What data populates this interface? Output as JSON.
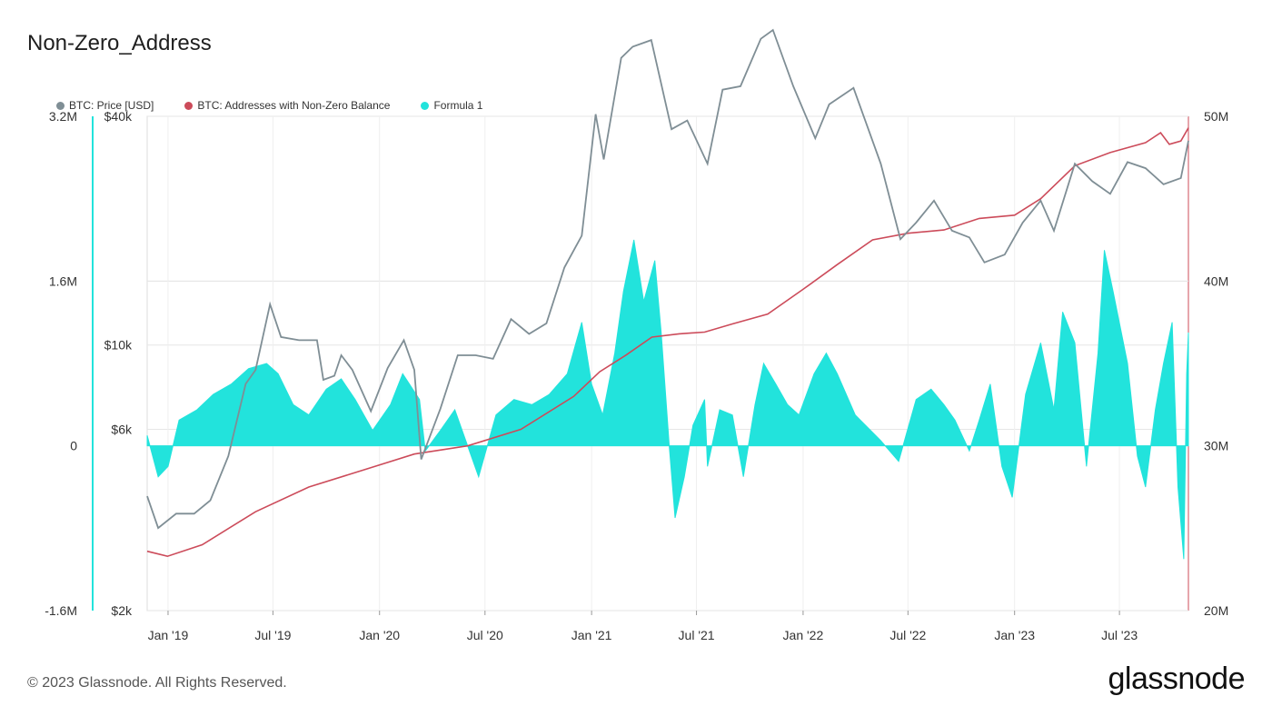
{
  "title": "Non-Zero_Address",
  "footer": "© 2023 Glassnode. All Rights Reserved.",
  "logo": "glassnode",
  "legend": [
    {
      "label": "BTC: Price [USD]",
      "color": "#7f8e95"
    },
    {
      "label": "BTC: Addresses with Non-Zero Balance",
      "color": "#cc4b5a"
    },
    {
      "label": "Formula 1",
      "color": "#22e3dc"
    }
  ],
  "chart_data": {
    "type": "line",
    "x_range": [
      "2018-11-26",
      "2023-10-28"
    ],
    "x_ticks": [
      {
        "label": "Jan '19",
        "date": "2019-01-01"
      },
      {
        "label": "Jul '19",
        "date": "2019-07-01"
      },
      {
        "label": "Jan '20",
        "date": "2020-01-01"
      },
      {
        "label": "Jul '20",
        "date": "2020-07-01"
      },
      {
        "label": "Jan '21",
        "date": "2021-01-01"
      },
      {
        "label": "Jul '21",
        "date": "2021-07-01"
      },
      {
        "label": "Jan '22",
        "date": "2022-01-01"
      },
      {
        "label": "Jul '22",
        "date": "2022-07-01"
      },
      {
        "label": "Jan '23",
        "date": "2023-01-01"
      },
      {
        "label": "Jul '23",
        "date": "2023-07-01"
      }
    ],
    "axes": {
      "formula": {
        "ticks": [
          {
            "label": "3.2M",
            "value": 3200000
          },
          {
            "label": "1.6M",
            "value": 1600000
          },
          {
            "label": "0",
            "value": 0
          },
          {
            "label": "-1.6M",
            "value": -1600000
          }
        ],
        "range": [
          -1600000,
          3200000
        ]
      },
      "price": {
        "scale": "log",
        "ticks": [
          {
            "label": "$40k",
            "value": 40000
          },
          {
            "label": "$10k",
            "value": 10000
          },
          {
            "label": "$6k",
            "value": 6000
          },
          {
            "label": "$2k",
            "value": 2000
          }
        ],
        "range": [
          2000,
          40000
        ]
      },
      "addresses": {
        "ticks": [
          {
            "label": "50M",
            "value": 50000000
          },
          {
            "label": "40M",
            "value": 40000000
          },
          {
            "label": "30M",
            "value": 30000000
          },
          {
            "label": "20M",
            "value": 20000000
          }
        ],
        "range": [
          20000000,
          50000000
        ]
      }
    },
    "series": [
      {
        "name": "BTC: Price [USD]",
        "axis": "price",
        "points": [
          [
            "2018-11-26",
            4000
          ],
          [
            "2018-12-15",
            3300
          ],
          [
            "2019-01-15",
            3600
          ],
          [
            "2019-02-15",
            3600
          ],
          [
            "2019-03-15",
            3900
          ],
          [
            "2019-04-15",
            5100
          ],
          [
            "2019-05-15",
            7900
          ],
          [
            "2019-06-01",
            8600
          ],
          [
            "2019-06-26",
            12800
          ],
          [
            "2019-07-15",
            10500
          ],
          [
            "2019-08-15",
            10300
          ],
          [
            "2019-09-15",
            10300
          ],
          [
            "2019-09-26",
            8100
          ],
          [
            "2019-10-15",
            8300
          ],
          [
            "2019-10-27",
            9400
          ],
          [
            "2019-11-15",
            8600
          ],
          [
            "2019-12-17",
            6700
          ],
          [
            "2020-01-15",
            8700
          ],
          [
            "2020-02-12",
            10300
          ],
          [
            "2020-03-01",
            8600
          ],
          [
            "2020-03-13",
            5000
          ],
          [
            "2020-04-15",
            6800
          ],
          [
            "2020-05-15",
            9400
          ],
          [
            "2020-06-15",
            9400
          ],
          [
            "2020-07-15",
            9200
          ],
          [
            "2020-08-15",
            11700
          ],
          [
            "2020-09-15",
            10700
          ],
          [
            "2020-10-15",
            11400
          ],
          [
            "2020-11-15",
            16000
          ],
          [
            "2020-12-15",
            19400
          ],
          [
            "2021-01-08",
            40500
          ],
          [
            "2021-01-22",
            30800
          ],
          [
            "2021-02-21",
            57000
          ],
          [
            "2021-03-13",
            61000
          ],
          [
            "2021-04-14",
            63500
          ],
          [
            "2021-05-19",
            37000
          ],
          [
            "2021-06-15",
            39000
          ],
          [
            "2021-07-20",
            30000
          ],
          [
            "2021-08-15",
            47000
          ],
          [
            "2021-09-15",
            48000
          ],
          [
            "2021-10-20",
            64000
          ],
          [
            "2021-11-10",
            67500
          ],
          [
            "2021-12-15",
            48000
          ],
          [
            "2022-01-22",
            35000
          ],
          [
            "2022-02-15",
            43000
          ],
          [
            "2022-03-29",
            47500
          ],
          [
            "2022-05-15",
            30000
          ],
          [
            "2022-06-18",
            19000
          ],
          [
            "2022-07-15",
            21000
          ],
          [
            "2022-08-15",
            24000
          ],
          [
            "2022-09-15",
            20000
          ],
          [
            "2022-10-15",
            19200
          ],
          [
            "2022-11-10",
            16500
          ],
          [
            "2022-12-15",
            17300
          ],
          [
            "2023-01-15",
            21000
          ],
          [
            "2023-02-15",
            24000
          ],
          [
            "2023-03-10",
            20000
          ],
          [
            "2023-04-15",
            30000
          ],
          [
            "2023-05-15",
            27000
          ],
          [
            "2023-06-15",
            25000
          ],
          [
            "2023-07-15",
            30300
          ],
          [
            "2023-08-15",
            29200
          ],
          [
            "2023-09-15",
            26500
          ],
          [
            "2023-10-15",
            27500
          ],
          [
            "2023-10-28",
            34500
          ]
        ]
      },
      {
        "name": "BTC: Addresses with Non-Zero Balance",
        "axis": "addresses",
        "points": [
          [
            "2018-11-26",
            23.6
          ],
          [
            "2018-12-31",
            23.3
          ],
          [
            "2019-03-01",
            24.0
          ],
          [
            "2019-06-01",
            26.0
          ],
          [
            "2019-09-01",
            27.5
          ],
          [
            "2019-12-01",
            28.5
          ],
          [
            "2020-03-01",
            29.5
          ],
          [
            "2020-06-01",
            30.0
          ],
          [
            "2020-09-01",
            31.0
          ],
          [
            "2020-12-01",
            33.0
          ],
          [
            "2021-01-15",
            34.5
          ],
          [
            "2021-03-01",
            35.5
          ],
          [
            "2021-04-15",
            36.6
          ],
          [
            "2021-06-01",
            36.8
          ],
          [
            "2021-07-15",
            36.9
          ],
          [
            "2021-09-01",
            37.4
          ],
          [
            "2021-11-01",
            38.0
          ],
          [
            "2022-01-01",
            39.5
          ],
          [
            "2022-03-01",
            41.0
          ],
          [
            "2022-05-01",
            42.5
          ],
          [
            "2022-07-01",
            42.9
          ],
          [
            "2022-09-01",
            43.1
          ],
          [
            "2022-11-01",
            43.8
          ],
          [
            "2023-01-01",
            44.0
          ],
          [
            "2023-02-15",
            45.0
          ],
          [
            "2023-04-15",
            47.0
          ],
          [
            "2023-06-15",
            47.8
          ],
          [
            "2023-08-15",
            48.4
          ],
          [
            "2023-09-10",
            49.0
          ],
          [
            "2023-09-25",
            48.3
          ],
          [
            "2023-10-15",
            48.5
          ],
          [
            "2023-10-28",
            49.3
          ]
        ]
      },
      {
        "name": "Formula 1",
        "axis": "formula",
        "style": "area",
        "points": [
          [
            "2018-11-26",
            100000
          ],
          [
            "2018-12-15",
            -300000
          ],
          [
            "2019-01-01",
            -200000
          ],
          [
            "2019-01-20",
            250000
          ],
          [
            "2019-02-20",
            350000
          ],
          [
            "2019-03-20",
            500000
          ],
          [
            "2019-04-20",
            600000
          ],
          [
            "2019-05-20",
            750000
          ],
          [
            "2019-06-20",
            800000
          ],
          [
            "2019-07-10",
            700000
          ],
          [
            "2019-08-05",
            400000
          ],
          [
            "2019-09-01",
            300000
          ],
          [
            "2019-10-01",
            550000
          ],
          [
            "2019-10-27",
            650000
          ],
          [
            "2019-11-20",
            450000
          ],
          [
            "2019-12-20",
            150000
          ],
          [
            "2020-01-20",
            400000
          ],
          [
            "2020-02-10",
            700000
          ],
          [
            "2020-03-10",
            450000
          ],
          [
            "2020-03-20",
            -50000
          ],
          [
            "2020-04-15",
            150000
          ],
          [
            "2020-05-10",
            350000
          ],
          [
            "2020-06-01",
            0
          ],
          [
            "2020-06-20",
            -300000
          ],
          [
            "2020-07-20",
            300000
          ],
          [
            "2020-08-20",
            450000
          ],
          [
            "2020-09-20",
            400000
          ],
          [
            "2020-10-20",
            500000
          ],
          [
            "2020-11-20",
            700000
          ],
          [
            "2020-12-15",
            1200000
          ],
          [
            "2021-01-01",
            600000
          ],
          [
            "2021-01-20",
            300000
          ],
          [
            "2021-02-10",
            900000
          ],
          [
            "2021-02-25",
            1500000
          ],
          [
            "2021-03-15",
            2000000
          ],
          [
            "2021-04-01",
            1400000
          ],
          [
            "2021-04-20",
            1800000
          ],
          [
            "2021-05-01",
            1100000
          ],
          [
            "2021-05-15",
            0
          ],
          [
            "2021-05-25",
            -700000
          ],
          [
            "2021-06-10",
            -300000
          ],
          [
            "2021-06-25",
            200000
          ],
          [
            "2021-07-15",
            450000
          ],
          [
            "2021-07-20",
            -200000
          ],
          [
            "2021-08-10",
            350000
          ],
          [
            "2021-09-01",
            300000
          ],
          [
            "2021-09-20",
            -300000
          ],
          [
            "2021-10-10",
            400000
          ],
          [
            "2021-10-25",
            800000
          ],
          [
            "2021-11-15",
            600000
          ],
          [
            "2021-12-05",
            400000
          ],
          [
            "2021-12-25",
            300000
          ],
          [
            "2022-01-20",
            700000
          ],
          [
            "2022-02-10",
            900000
          ],
          [
            "2022-03-01",
            700000
          ],
          [
            "2022-04-01",
            300000
          ],
          [
            "2022-05-15",
            50000
          ],
          [
            "2022-06-15",
            -150000
          ],
          [
            "2022-07-15",
            450000
          ],
          [
            "2022-08-10",
            550000
          ],
          [
            "2022-09-01",
            400000
          ],
          [
            "2022-09-20",
            250000
          ],
          [
            "2022-10-15",
            -50000
          ],
          [
            "2022-11-01",
            250000
          ],
          [
            "2022-11-20",
            600000
          ],
          [
            "2022-12-10",
            -200000
          ],
          [
            "2022-12-28",
            -500000
          ],
          [
            "2023-01-20",
            500000
          ],
          [
            "2023-02-15",
            1000000
          ],
          [
            "2023-03-10",
            350000
          ],
          [
            "2023-03-25",
            1300000
          ],
          [
            "2023-04-15",
            1000000
          ],
          [
            "2023-05-05",
            -200000
          ],
          [
            "2023-05-25",
            900000
          ],
          [
            "2023-06-05",
            1900000
          ],
          [
            "2023-06-20",
            1500000
          ],
          [
            "2023-07-15",
            800000
          ],
          [
            "2023-08-01",
            -100000
          ],
          [
            "2023-08-15",
            -400000
          ],
          [
            "2023-09-01",
            350000
          ],
          [
            "2023-09-15",
            800000
          ],
          [
            "2023-09-30",
            1200000
          ],
          [
            "2023-10-10",
            -400000
          ],
          [
            "2023-10-20",
            -1100000
          ],
          [
            "2023-10-25",
            700000
          ],
          [
            "2023-10-28",
            1100000
          ]
        ]
      }
    ]
  }
}
